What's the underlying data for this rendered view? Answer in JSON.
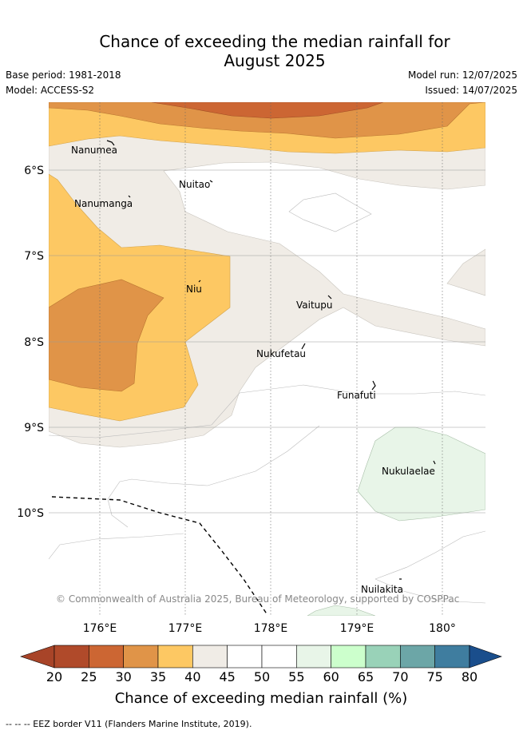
{
  "title": {
    "line1": "Chance of exceeding the median rainfall for",
    "line2": "August 2025"
  },
  "meta": {
    "base_period": "Base period: 1981-2018",
    "model": "Model: ACCESS-S2",
    "model_run": "Model run: 12/07/2025",
    "issued": "Issued: 14/07/2025"
  },
  "map": {
    "latitude_ticks": [
      "6°S",
      "7°S",
      "8°S",
      "9°S",
      "10°S"
    ],
    "longitude_ticks": [
      "176°E",
      "177°E",
      "178°E",
      "179°E",
      "180°"
    ],
    "places": [
      {
        "name": "Nanumea"
      },
      {
        "name": "Nuitao"
      },
      {
        "name": "Nanumanga"
      },
      {
        "name": "Niu"
      },
      {
        "name": "Vaitupu"
      },
      {
        "name": "Nukufetau"
      },
      {
        "name": "Funafuti"
      },
      {
        "name": "Nukulaelae"
      },
      {
        "name": "Nuilakita"
      }
    ],
    "credit": "© Commonwealth of Australia 2025, Bureau of Meteorology, supported by COSPPac"
  },
  "colorbar": {
    "ticks": [
      "20",
      "25",
      "30",
      "35",
      "40",
      "45",
      "50",
      "55",
      "60",
      "65",
      "70",
      "75",
      "80"
    ],
    "colors": [
      "#b04a2a",
      "#cc6633",
      "#e09448",
      "#fdc863",
      "#f0ece6",
      "#ffffff",
      "#ffffff",
      "#e8f5e8",
      "#ccffcc",
      "#99d2b8",
      "#6ca6a7",
      "#3f7d9f"
    ],
    "under_color": "#a84428",
    "over_color": "#1a4e8c",
    "label": "Chance of exceeding median rainfall (%)"
  },
  "footer": "-- --  -- EEZ border V11 (Flanders Marine Institute, 2019)."
}
